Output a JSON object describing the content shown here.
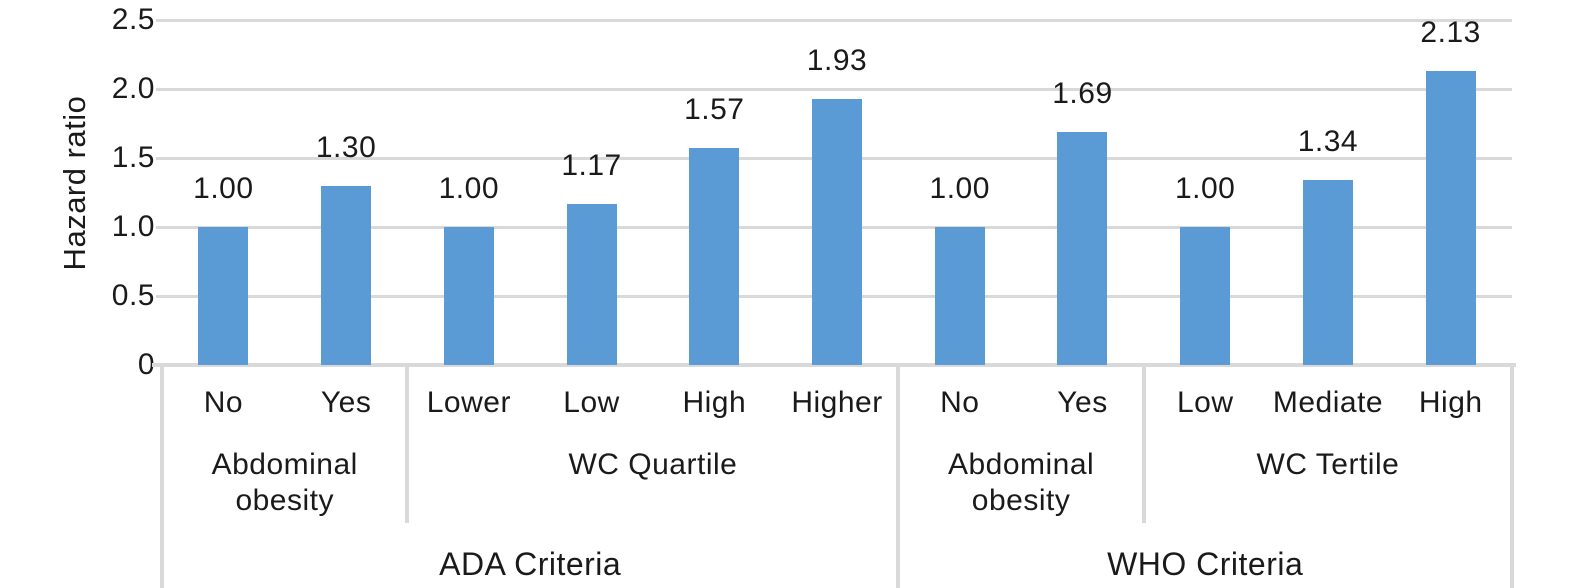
{
  "chart_data": {
    "type": "bar",
    "title": "",
    "ylabel": "Hazard ratio",
    "ylim": [
      0,
      2.5
    ],
    "grid": true,
    "legend": "none",
    "bar_color": "#5B9BD5",
    "gridline_color": "#D9D9D9",
    "text_color": "#1A1A1A",
    "yticks": [
      {
        "label": "2.5",
        "value": 2.5
      },
      {
        "label": "2.0",
        "value": 2.0
      },
      {
        "label": "1.5",
        "value": 1.5
      },
      {
        "label": "1.0",
        "value": 1.0
      },
      {
        "label": "0.5",
        "value": 0.5
      },
      {
        "label": "0",
        "value": 0.0
      }
    ],
    "bars": [
      {
        "category": "No",
        "value": 1.0,
        "label": "1.00"
      },
      {
        "category": "Yes",
        "value": 1.3,
        "label": "1.30"
      },
      {
        "category": "Lower",
        "value": 1.0,
        "label": "1.00"
      },
      {
        "category": "Low",
        "value": 1.17,
        "label": "1.17"
      },
      {
        "category": "High",
        "value": 1.57,
        "label": "1.57"
      },
      {
        "category": "Higher",
        "value": 1.93,
        "label": "1.93"
      },
      {
        "category": "No",
        "value": 1.0,
        "label": "1.00"
      },
      {
        "category": "Yes",
        "value": 1.69,
        "label": "1.69"
      },
      {
        "category": "Low",
        "value": 1.0,
        "label": "1.00"
      },
      {
        "category": "Mediate",
        "value": 1.34,
        "label": "1.34"
      },
      {
        "category": "High",
        "value": 2.13,
        "label": "2.13"
      }
    ],
    "groups": [
      {
        "label": "Abdominal obesity",
        "span": 2
      },
      {
        "label": "WC Quartile",
        "span": 4
      },
      {
        "label": "Abdominal obesity",
        "span": 2
      },
      {
        "label": "WC Tertile",
        "span": 3
      }
    ],
    "supergroups": [
      {
        "label": "ADA Criteria",
        "span": 6
      },
      {
        "label": "WHO Criteria",
        "span": 5
      }
    ]
  }
}
